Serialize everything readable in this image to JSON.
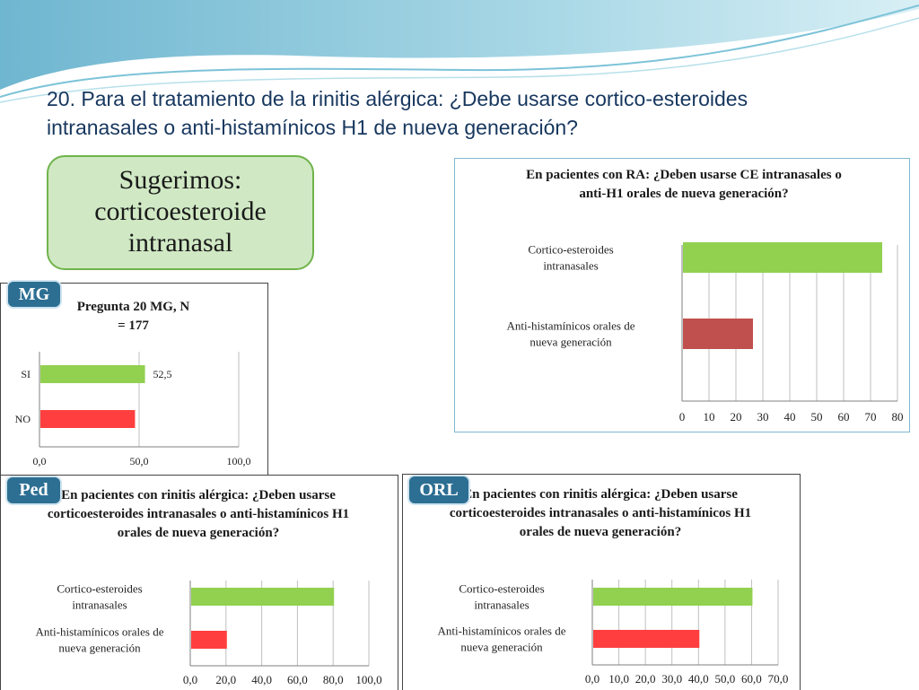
{
  "slide": {
    "title": "20. Para el tratamiento de la rinitis alérgica: ¿Debe usarse cortico-esteroides intranasales o anti-histamínicos H1 de nueva generación?",
    "suggestion": "Sugerimos: corticoesteroide intranasal"
  },
  "badges": {
    "mg": "MG",
    "ped": "Ped",
    "orl": "ORL"
  },
  "chart_data": [
    {
      "id": "ra",
      "type": "bar",
      "orientation": "horizontal",
      "title": "En pacientes con RA: ¿Deben usarse CE intranasales o anti-H1 orales de nueva generación?",
      "categories": [
        "Cortico-esteroides intranasales",
        "Anti-histamínicos orales de nueva generación"
      ],
      "values": [
        74,
        26
      ],
      "colors": [
        "#92d050",
        "#c0504d"
      ],
      "xlim": [
        0,
        80
      ],
      "ticks": [
        "0",
        "10",
        "20",
        "30",
        "40",
        "50",
        "60",
        "70",
        "80"
      ],
      "grid": true
    },
    {
      "id": "mg",
      "type": "bar",
      "orientation": "horizontal",
      "title": "Pregunta 20 MG, N = 177",
      "categories": [
        "SI",
        "NO"
      ],
      "values": [
        52.5,
        47.5
      ],
      "data_labels": [
        "52,5",
        ""
      ],
      "colors": [
        "#92d050",
        "#ff3f3f"
      ],
      "xlim": [
        0,
        100
      ],
      "ticks": [
        "0,0",
        "50,0",
        "100,0"
      ],
      "grid": true
    },
    {
      "id": "ped",
      "type": "bar",
      "orientation": "horizontal",
      "title": "En pacientes con rinitis alérgica: ¿Deben usarse corticoesteroides intranasales o anti-histamínicos H1 orales de nueva generación?",
      "categories": [
        "Cortico-esteroides intranasales",
        "Anti-histamínicos orales de nueva generación"
      ],
      "values": [
        80,
        20
      ],
      "colors": [
        "#92d050",
        "#ff3f3f"
      ],
      "xlim": [
        0,
        100
      ],
      "ticks": [
        "0,0",
        "20,0",
        "40,0",
        "60,0",
        "80,0",
        "100,0"
      ],
      "grid": true
    },
    {
      "id": "orl",
      "type": "bar",
      "orientation": "horizontal",
      "title": "En pacientes con rinitis alérgica: ¿Deben usarse corticoesteroides intranasales o anti-histamínicos H1 orales de nueva generación?",
      "categories": [
        "Cortico-esteroides intranasales",
        "Anti-histamínicos orales de nueva generación"
      ],
      "values": [
        60,
        40
      ],
      "colors": [
        "#92d050",
        "#ff3f3f"
      ],
      "xlim": [
        0,
        70
      ],
      "ticks": [
        "0,0",
        "10,0",
        "20,0",
        "30,0",
        "40,0",
        "50,0",
        "60,0",
        "70,0"
      ],
      "grid": true
    }
  ]
}
